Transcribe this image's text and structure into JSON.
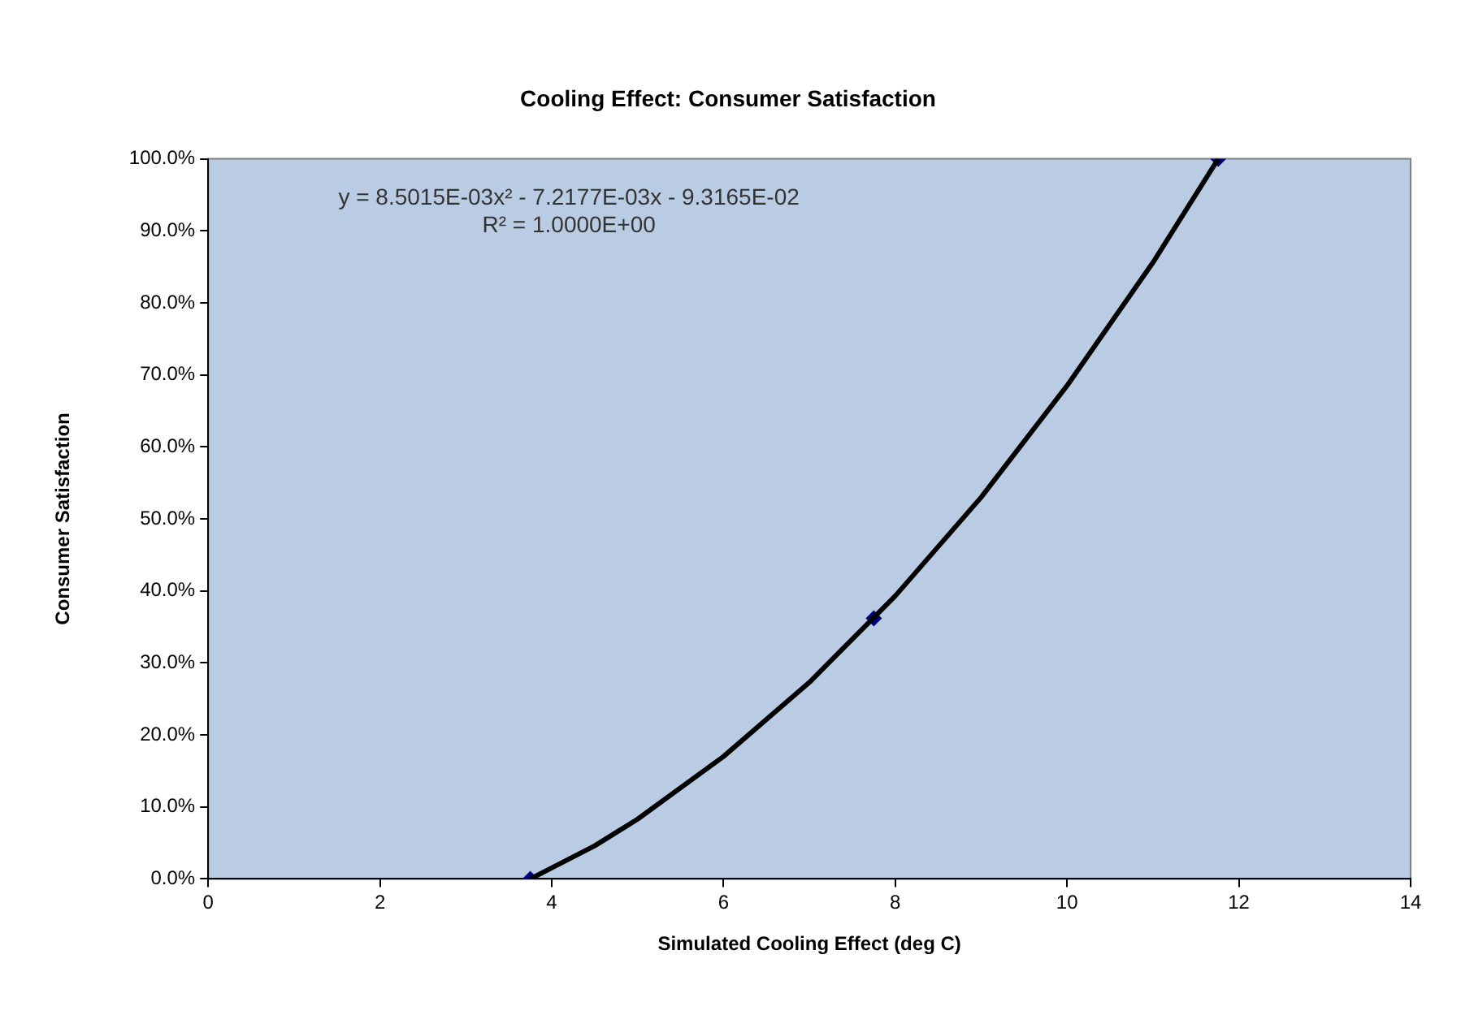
{
  "chart_data": {
    "type": "scatter",
    "title": "Cooling Effect: Consumer Satisfaction",
    "xlabel": "Simulated Cooling Effect (deg C)",
    "ylabel": "Consumer Satisfaction",
    "xlim": [
      0,
      14
    ],
    "xticks": [
      0,
      2,
      4,
      6,
      8,
      10,
      12,
      14
    ],
    "ylim": [
      0,
      100
    ],
    "yticks": [
      {
        "value": 0,
        "label": "0.0%"
      },
      {
        "value": 10,
        "label": "10.0%"
      },
      {
        "value": 20,
        "label": "20.0%"
      },
      {
        "value": 30,
        "label": "30.0%"
      },
      {
        "value": 40,
        "label": "40.0%"
      },
      {
        "value": 50,
        "label": "50.0%"
      },
      {
        "value": 60,
        "label": "60.0%"
      },
      {
        "value": 70,
        "label": "70.0%"
      },
      {
        "value": 80,
        "label": "80.0%"
      },
      {
        "value": 90,
        "label": "90.0%"
      },
      {
        "value": 100,
        "label": "100.0%"
      }
    ],
    "grid": false,
    "legend": false,
    "annotations": [
      "y = 8.5015E-03x² - 7.2177E-03x - 9.3165E-02\nR² = 1.0000E+00"
    ],
    "series": [
      {
        "type": "line",
        "color": "#000000",
        "marker": "none",
        "line_style": "solid",
        "x": [
          3.75,
          4.5,
          5,
          6,
          7,
          8,
          9,
          10,
          11,
          11.76
        ],
        "values": [
          0,
          4.6,
          8.3,
          17,
          27.3,
          39.3,
          53,
          68.5,
          85.6,
          100
        ]
      },
      {
        "color": "#000080",
        "marker": "diamond",
        "x": [
          3.75,
          7.75,
          11.76
        ],
        "values": [
          0,
          36.2,
          100
        ]
      }
    ]
  }
}
